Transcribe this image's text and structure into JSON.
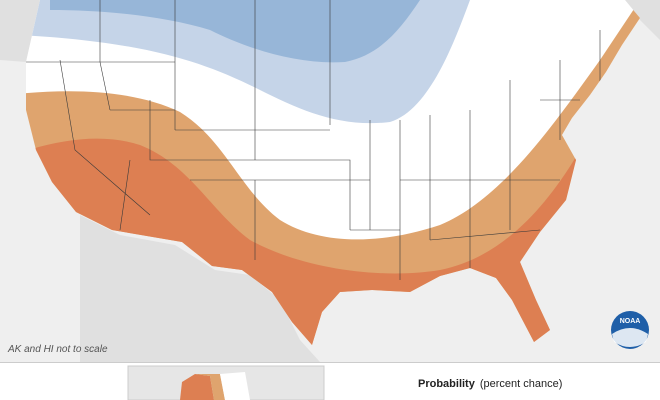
{
  "map": {
    "note": "AK and HI not to scale",
    "logo": "NOAA",
    "legend": {
      "title": "Probability",
      "subtitle": "(percent chance)"
    }
  }
}
